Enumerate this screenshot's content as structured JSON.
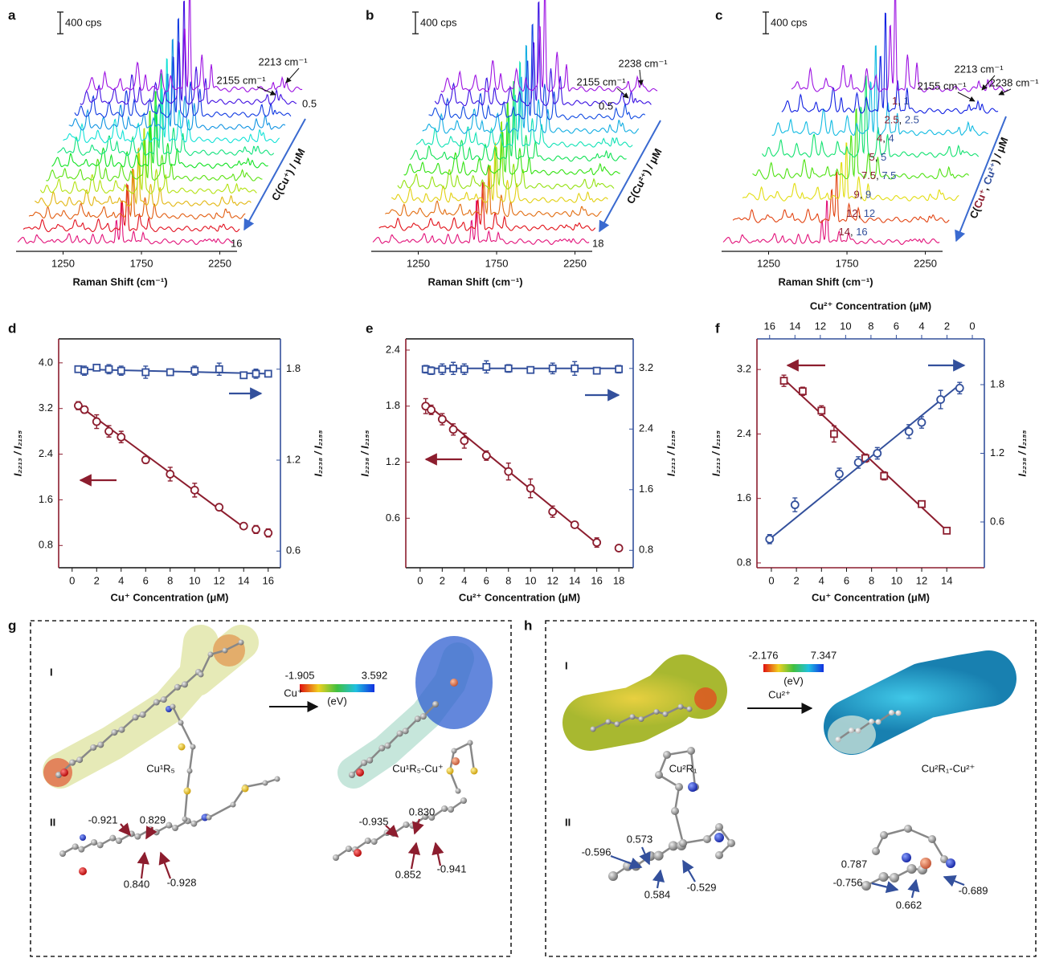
{
  "panel_labels": [
    "a",
    "b",
    "c",
    "d",
    "e",
    "f",
    "g",
    "h"
  ],
  "chart_data": [
    {
      "type": "spectra",
      "scale_bar": "400 cps",
      "xlabel": "Raman Shift (cm⁻¹)",
      "xlim": [
        950,
        2360
      ],
      "xticks": [
        1250,
        1750,
        2250
      ],
      "ylabel": [
        {
          "text": "C(Cu⁺) / μM",
          "color": "#111111"
        }
      ],
      "annotations": [
        "2155 cm⁻¹",
        "2213 cm⁻¹"
      ],
      "series_labels": [
        {
          "text": "0.5",
          "color": "#a020c8"
        },
        {
          "text": "16",
          "color": "#e8177f"
        }
      ]
    },
    {
      "type": "spectra",
      "scale_bar": "400 cps",
      "xlabel": "Raman Shift (cm⁻¹)",
      "xlim": [
        950,
        2360
      ],
      "xticks": [
        1250,
        1750,
        2250
      ],
      "ylabel": [
        {
          "text": "C(Cu²⁺) / μM",
          "color": "#111111"
        }
      ],
      "annotations": [
        "2155 cm⁻¹",
        "2238 cm⁻¹"
      ],
      "series_labels": [
        {
          "text": "0.5",
          "color": "#a020c8"
        },
        {
          "text": "18",
          "color": "#e8177f"
        }
      ]
    },
    {
      "type": "spectra",
      "scale_bar": "400 cps",
      "xlabel": "Raman Shift (cm⁻¹)",
      "xlim": [
        950,
        2360
      ],
      "xticks": [
        1250,
        1750,
        2250
      ],
      "ylabel": [
        {
          "text": "C(",
          "color": "#111111"
        },
        {
          "text": "Cu⁺",
          "color": "#8c1d2e"
        },
        {
          "text": ", ",
          "color": "#111111"
        },
        {
          "text": "Cu²⁺",
          "color": "#33509c"
        },
        {
          "text": ") / μM",
          "color": "#111111"
        }
      ],
      "annotations": [
        "2155 cm⁻¹",
        "2213 cm⁻¹",
        "2238 cm⁻¹"
      ],
      "pair_colors": [
        "#8c1d2e",
        "#33509c"
      ],
      "pair_labels": [
        [
          "1",
          "1"
        ],
        [
          "2.5",
          "2.5"
        ],
        [
          "4",
          "4"
        ],
        [
          "5",
          "5"
        ],
        [
          "7.5",
          "7.5"
        ],
        [
          "9",
          "9"
        ],
        [
          "12",
          "12"
        ],
        [
          "14",
          "16"
        ]
      ]
    },
    {
      "type": "dual_scatter",
      "xlabel": "Cu⁺ Concentration (μM)",
      "xlim": [
        -1.1,
        17
      ],
      "xticks": [
        0,
        2,
        4,
        6,
        8,
        10,
        12,
        14,
        16
      ],
      "ylim": [
        0.41,
        4.42
      ],
      "yticks": [
        0.8,
        1.6,
        2.4,
        3.2,
        {
          "value": 4,
          "label": "4.0"
        }
      ],
      "ylabel": "I₂₂₁₃ / I₂₁₅₅",
      "y2lim": [
        0.49,
        2.0
      ],
      "y2ticks": [
        0.6,
        1.2,
        1.8
      ],
      "y2label": "I₂₂₃₈ / I₂₁₅₅",
      "series": [
        {
          "color": "#8c1d2e",
          "marker": "circle",
          "x": [
            0.5,
            1,
            2,
            3,
            4,
            6,
            8,
            10,
            12,
            14,
            15,
            16
          ],
          "values": [
            3.25,
            3.18,
            2.97,
            2.8,
            2.7,
            2.3,
            2.05,
            1.77,
            1.47,
            1.14,
            1.08,
            1.02
          ],
          "errors": [
            0.07,
            0.06,
            0.12,
            0.1,
            0.1,
            0.06,
            0.12,
            0.12,
            0.05,
            0.04,
            0.07,
            0.07
          ],
          "fit_x": [
            0.5,
            14
          ],
          "fit_values": [
            3.26,
            1.12
          ]
        },
        {
          "color": "#33509c",
          "marker": "square",
          "axis": "y2",
          "x": [
            0.5,
            1,
            2,
            3,
            4,
            6,
            8,
            10,
            12,
            14,
            15,
            16
          ],
          "values": [
            1.8,
            1.79,
            1.81,
            1.8,
            1.79,
            1.78,
            1.78,
            1.79,
            1.8,
            1.76,
            1.77,
            1.77
          ],
          "errors": [
            0.02,
            0.03,
            0.01,
            0.03,
            0.03,
            0.04,
            0.02,
            0.03,
            0.04,
            0.02,
            0.03,
            0.02
          ],
          "fit_x": [
            0.5,
            16
          ],
          "fit_values": [
            1.8,
            1.77
          ]
        }
      ]
    },
    {
      "type": "dual_scatter",
      "xlabel": "Cu²⁺ Concentration (μM)",
      "xlim": [
        -1.3,
        19.3
      ],
      "xticks": [
        0,
        2,
        4,
        6,
        8,
        10,
        12,
        14,
        16,
        18
      ],
      "ylim": [
        0.07,
        2.52
      ],
      "yticks": [
        0.6,
        1.2,
        1.8,
        2.4
      ],
      "ylabel": "I₂₂₃₈ / I₂₁₅₅",
      "y2lim": [
        0.57,
        3.59
      ],
      "y2ticks": [
        0.8,
        1.6,
        2.4,
        3.2
      ],
      "y2label": "I₂₂₁₃ / I₂₁₅₅",
      "series": [
        {
          "color": "#8c1d2e",
          "marker": "circle",
          "x": [
            0.5,
            1,
            2,
            3,
            4,
            6,
            8,
            10,
            12,
            14,
            16,
            18
          ],
          "values": [
            1.8,
            1.76,
            1.66,
            1.55,
            1.43,
            1.27,
            1.1,
            0.92,
            0.67,
            0.53,
            0.34,
            0.28
          ],
          "errors": [
            0.08,
            0.05,
            0.06,
            0.06,
            0.08,
            0.05,
            0.09,
            0.1,
            0.06,
            0.03,
            0.05,
            0.03
          ],
          "fit_x": [
            0.5,
            16
          ],
          "fit_values": [
            1.83,
            0.33
          ]
        },
        {
          "color": "#33509c",
          "marker": "square",
          "axis": "y2",
          "x": [
            0.5,
            1,
            2,
            3,
            4,
            6,
            8,
            10,
            12,
            14,
            16,
            18
          ],
          "values": [
            3.19,
            3.17,
            3.19,
            3.2,
            3.19,
            3.22,
            3.2,
            3.18,
            3.2,
            3.2,
            3.17,
            3.19
          ],
          "errors": [
            0.05,
            0.05,
            0.07,
            0.08,
            0.07,
            0.08,
            0.05,
            0.04,
            0.07,
            0.09,
            0.02,
            0.05
          ],
          "fit_x": [
            0.5,
            18
          ],
          "fit_values": [
            3.2,
            3.2
          ]
        }
      ]
    },
    {
      "type": "dual_scatter",
      "xlabel": "Cu⁺ Concentration (μM)",
      "xlim": [
        -1.15,
        17
      ],
      "xticks": [
        0,
        2,
        4,
        6,
        8,
        10,
        12,
        14
      ],
      "x2label": "Cu²⁺ Concentration (μM)",
      "x2lim": [
        17,
        -0.95
      ],
      "x2ticks": [
        16,
        14,
        12,
        10,
        8,
        6,
        4,
        2,
        0
      ],
      "ylim": [
        0.74,
        3.58
      ],
      "yticks": [
        0.8,
        1.6,
        2.4,
        3.2
      ],
      "ylabel": "I₂₂₁₃ / I₂₁₅₅",
      "y2lim": [
        0.2,
        2.2
      ],
      "y2ticks": [
        0.6,
        1.2,
        1.8
      ],
      "y2label": "I₂₂₃₈ / I₂₁₅₅",
      "series": [
        {
          "color": "#8c1d2e",
          "marker": "square",
          "x": [
            1,
            2.5,
            4,
            5,
            7.5,
            9,
            12,
            14
          ],
          "values": [
            3.06,
            2.93,
            2.69,
            2.4,
            2.1,
            1.88,
            1.53,
            1.2
          ],
          "errors": [
            0.07,
            0.05,
            0.06,
            0.1,
            0.05,
            0.05,
            0.04,
            0.03
          ],
          "fit_x": [
            1,
            14
          ],
          "fit_values": [
            3.08,
            1.2
          ]
        },
        {
          "color": "#33509c",
          "marker": "circle",
          "axis": "y2",
          "xaxis": "x2",
          "x": [
            16,
            14,
            10.5,
            9,
            7.5,
            5,
            4,
            2.5,
            1
          ],
          "values": [
            0.45,
            0.75,
            1.02,
            1.12,
            1.2,
            1.39,
            1.47,
            1.67,
            1.77
          ],
          "errors": [
            0.04,
            0.06,
            0.05,
            0.05,
            0.05,
            0.06,
            0.05,
            0.08,
            0.05
          ],
          "fit_x": [
            16,
            1
          ],
          "fit_values": [
            0.45,
            1.8
          ]
        }
      ]
    }
  ],
  "panel_g": {
    "section_labels": [
      "I",
      "II"
    ],
    "colorbar": {
      "min": "-1.905",
      "max": "3.592",
      "unit": "(eV)"
    },
    "left_label": "Cu¹R₅",
    "reaction": "Cu⁺",
    "right_label": "Cu¹R₅-Cu⁺",
    "left_charges": [
      "-0.921",
      "0.829",
      "0.840",
      "-0.928"
    ],
    "right_charges": [
      "-0.935",
      "0.830",
      "0.852",
      "-0.941"
    ]
  },
  "panel_h": {
    "section_labels": [
      "I",
      "II"
    ],
    "colorbar": {
      "min": "-2.176",
      "max": "7.347",
      "unit": "(eV)"
    },
    "left_label": "Cu²R₁",
    "reaction": "Cu²⁺",
    "right_label": "Cu²R₁-Cu²⁺",
    "left_charges": [
      "-0.596",
      "0.573",
      "0.584",
      "-0.529"
    ],
    "right_charges": [
      "0.787",
      "-0.756",
      "0.662",
      "-0.689"
    ]
  }
}
